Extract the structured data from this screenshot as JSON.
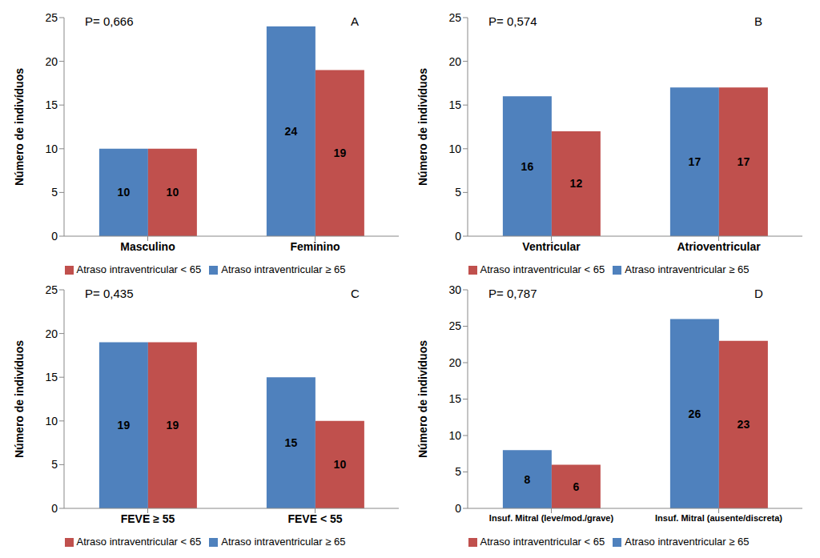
{
  "chart_data": [
    {
      "type": "bar",
      "title": "A",
      "annotations": [
        "P= 0,666"
      ],
      "y_label": "Número de indivíduos",
      "categories": [
        "Masculino",
        "Feminino"
      ],
      "series": [
        {
          "name": "Atraso intraventricular ≥ 65",
          "color": "#4f81bd",
          "values": [
            10,
            24
          ]
        },
        {
          "name": "Atraso intraventricular < 65",
          "color": "#c0504d",
          "values": [
            10,
            19
          ]
        }
      ],
      "ylim": [
        0,
        25
      ],
      "yticks": [
        0,
        5,
        10,
        15,
        20,
        25
      ],
      "grid": false,
      "legend": "bottom",
      "data_labels": true
    },
    {
      "type": "bar",
      "title": "B",
      "annotations": [
        "P= 0,574"
      ],
      "y_label": "Número de indivíduos",
      "categories": [
        "Ventricular",
        "Atrioventricular"
      ],
      "series": [
        {
          "name": "Atraso intraventricular ≥ 65",
          "color": "#4f81bd",
          "values": [
            16,
            17
          ]
        },
        {
          "name": "Atraso intraventricular < 65",
          "color": "#c0504d",
          "values": [
            12,
            17
          ]
        }
      ],
      "ylim": [
        0,
        25
      ],
      "yticks": [
        0,
        5,
        10,
        15,
        20,
        25
      ],
      "grid": false,
      "legend": "bottom",
      "data_labels": true
    },
    {
      "type": "bar",
      "title": "C",
      "annotations": [
        "P= 0,435"
      ],
      "y_label": "Número de indivíduos",
      "categories": [
        "FEVE  ≥ 55",
        "FEVE  < 55"
      ],
      "series": [
        {
          "name": "Atraso intraventricular ≥ 65",
          "color": "#4f81bd",
          "values": [
            19,
            15
          ]
        },
        {
          "name": "Atraso intraventricular < 65",
          "color": "#c0504d",
          "values": [
            19,
            10
          ]
        }
      ],
      "ylim": [
        0,
        25
      ],
      "yticks": [
        0,
        5,
        10,
        15,
        20,
        25
      ],
      "grid": false,
      "legend": "bottom",
      "data_labels": true
    },
    {
      "type": "bar",
      "title": "D",
      "annotations": [
        "P= 0,787"
      ],
      "y_label": "Número de indivíduos",
      "categories": [
        "Insuf. Mitral (leve/mod./grave)",
        "Insuf. Mitral (ausente/discreta)"
      ],
      "series": [
        {
          "name": "Atraso intraventricular ≥ 65",
          "color": "#4f81bd",
          "values": [
            8,
            26
          ]
        },
        {
          "name": "Atraso intraventricular < 65",
          "color": "#c0504d",
          "values": [
            6,
            23
          ]
        }
      ],
      "ylim": [
        0,
        30
      ],
      "yticks": [
        0,
        5,
        10,
        15,
        20,
        25,
        30
      ],
      "grid": false,
      "legend": "bottom",
      "data_labels": true
    }
  ]
}
